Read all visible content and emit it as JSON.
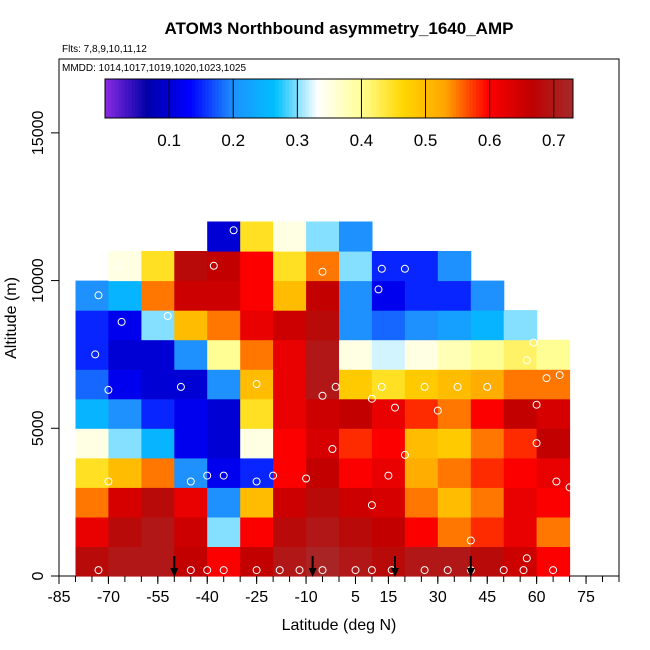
{
  "chart_data": {
    "type": "heatmap",
    "title": "ATOM3 Northbound asymmetry_1640_AMP",
    "subtitle_flights": "Flts: 7,8,9,10,11,12",
    "subtitle_dates": "MMDD: 1014,1017,1019,1020,1023,1025",
    "xlabel": "Latitude (deg N)",
    "ylabel": "Altitude (m)",
    "xlim": [
      -85,
      85
    ],
    "ylim": [
      0,
      17500
    ],
    "x_tick_labels": [
      "-85",
      "-70",
      "-55",
      "-40",
      "-25",
      "-10",
      "5",
      "15",
      "30",
      "45",
      "60",
      "75"
    ],
    "x_tick_values": [
      -85,
      -70,
      -55,
      -40,
      -25,
      -10,
      5,
      15,
      30,
      45,
      60,
      75
    ],
    "y_tick_labels": [
      "0",
      "5000",
      "10000",
      "15000"
    ],
    "y_tick_values": [
      0,
      5000,
      10000,
      15000
    ],
    "colorbar": {
      "range": [
        0.0,
        0.73
      ],
      "tick_labels": [
        "0.1",
        "0.2",
        "0.3",
        "0.4",
        "0.5",
        "0.6",
        "0.7"
      ],
      "tick_values": [
        0.1,
        0.2,
        0.3,
        0.4,
        0.5,
        0.6,
        0.7
      ],
      "colors": [
        "#8a2be2",
        "#0000a8",
        "#0000ff",
        "#1e90ff",
        "#00bfff",
        "#ffffff",
        "#ffff99",
        "#ffd700",
        "#ffa500",
        "#ff0000",
        "#c00000",
        "#a52a2a"
      ]
    },
    "latitude_bins": [
      -75,
      -65,
      -55,
      -45,
      -35,
      -25,
      -15,
      -5,
      5,
      15,
      25,
      35,
      45,
      55,
      65,
      75
    ],
    "altitude_bins": [
      500,
      1500,
      2500,
      3500,
      4500,
      5500,
      6500,
      7500,
      8500,
      9500,
      10500,
      11500
    ],
    "values": [
      [
        0.68,
        0.7,
        0.7,
        0.66,
        0.6,
        0.66,
        0.7,
        0.72,
        0.7,
        0.68,
        0.7,
        0.7,
        0.68,
        0.65,
        0.6,
        null
      ],
      [
        0.62,
        0.68,
        0.7,
        0.65,
        0.3,
        0.6,
        0.68,
        0.7,
        0.68,
        0.66,
        0.6,
        0.55,
        0.58,
        0.62,
        0.55,
        null
      ],
      [
        0.55,
        0.64,
        0.68,
        0.62,
        0.2,
        0.5,
        0.65,
        0.68,
        0.65,
        0.64,
        0.55,
        0.5,
        0.55,
        0.62,
        0.6,
        null
      ],
      [
        0.45,
        0.5,
        0.55,
        0.2,
        0.12,
        0.15,
        0.6,
        0.66,
        0.6,
        0.62,
        0.52,
        0.55,
        0.58,
        0.6,
        0.62,
        null
      ],
      [
        0.35,
        0.3,
        0.25,
        0.12,
        0.1,
        0.35,
        0.6,
        0.64,
        0.58,
        0.6,
        0.5,
        0.48,
        0.55,
        0.58,
        0.66,
        null
      ],
      [
        0.25,
        0.2,
        0.15,
        0.12,
        0.1,
        0.45,
        0.62,
        0.65,
        0.66,
        0.62,
        0.58,
        0.55,
        0.6,
        0.66,
        0.64,
        null
      ],
      [
        0.18,
        0.12,
        0.1,
        0.1,
        0.2,
        0.5,
        0.62,
        0.7,
        0.48,
        0.45,
        0.48,
        0.5,
        0.52,
        0.55,
        0.55,
        null
      ],
      [
        0.15,
        0.1,
        0.1,
        0.2,
        0.4,
        0.55,
        0.62,
        0.7,
        0.35,
        0.32,
        0.35,
        0.38,
        0.4,
        0.42,
        0.4,
        null
      ],
      [
        0.15,
        0.12,
        0.3,
        0.5,
        0.55,
        0.62,
        0.65,
        0.68,
        0.2,
        0.18,
        0.2,
        0.22,
        0.25,
        0.3,
        null,
        null
      ],
      [
        0.2,
        0.25,
        0.55,
        0.65,
        0.65,
        0.6,
        0.5,
        0.66,
        0.2,
        0.12,
        0.15,
        0.15,
        0.2,
        null,
        null,
        null
      ],
      [
        null,
        0.35,
        0.45,
        0.68,
        0.66,
        0.6,
        0.45,
        0.55,
        0.3,
        0.15,
        0.15,
        0.2,
        null,
        null,
        null,
        null
      ],
      [
        null,
        null,
        null,
        null,
        0.1,
        0.45,
        0.35,
        0.3,
        0.2,
        null,
        null,
        null,
        null,
        null,
        null,
        null
      ]
    ],
    "sample_points": [
      [
        -73,
        9500
      ],
      [
        -74,
        7500
      ],
      [
        -70,
        6300
      ],
      [
        -66,
        8600
      ],
      [
        -67,
        10500
      ],
      [
        -52,
        8800
      ],
      [
        -48,
        6400
      ],
      [
        -38,
        10500
      ],
      [
        -32,
        11700
      ],
      [
        -25,
        6500
      ],
      [
        -70,
        3200
      ],
      [
        -45,
        3200
      ],
      [
        -40,
        3400
      ],
      [
        -35,
        3400
      ],
      [
        -25,
        3200
      ],
      [
        -20,
        3400
      ],
      [
        -10,
        3300
      ],
      [
        -5,
        10300
      ],
      [
        -5,
        6100
      ],
      [
        -2,
        4300
      ],
      [
        -1,
        6400
      ],
      [
        10,
        6000
      ],
      [
        13,
        6400
      ],
      [
        17,
        5700
      ],
      [
        20,
        4100
      ],
      [
        26,
        6400
      ],
      [
        30,
        5600
      ],
      [
        36,
        6400
      ],
      [
        45,
        6400
      ],
      [
        10,
        2400
      ],
      [
        15,
        3400
      ],
      [
        40,
        1200
      ],
      [
        57,
        600
      ],
      [
        60,
        4500
      ],
      [
        66,
        3200
      ],
      [
        70,
        3000
      ],
      [
        59,
        7900
      ],
      [
        57,
        7300
      ],
      [
        63,
        6700
      ],
      [
        67,
        6800
      ],
      [
        74,
        6700
      ],
      [
        60,
        5800
      ],
      [
        12,
        9700
      ],
      [
        13,
        10400
      ],
      [
        20,
        10400
      ],
      [
        -73,
        200
      ],
      [
        -45,
        200
      ],
      [
        -40,
        200
      ],
      [
        -35,
        200
      ],
      [
        -25,
        200
      ],
      [
        -18,
        200
      ],
      [
        -12,
        200
      ],
      [
        -5,
        200
      ],
      [
        5,
        200
      ],
      [
        10,
        200
      ],
      [
        16,
        200
      ],
      [
        26,
        200
      ],
      [
        33,
        200
      ],
      [
        40,
        200
      ],
      [
        50,
        200
      ],
      [
        56,
        200
      ],
      [
        65,
        200
      ],
      [
        75,
        200
      ]
    ],
    "arrow_latitudes": [
      -50,
      -8,
      17,
      40
    ]
  }
}
